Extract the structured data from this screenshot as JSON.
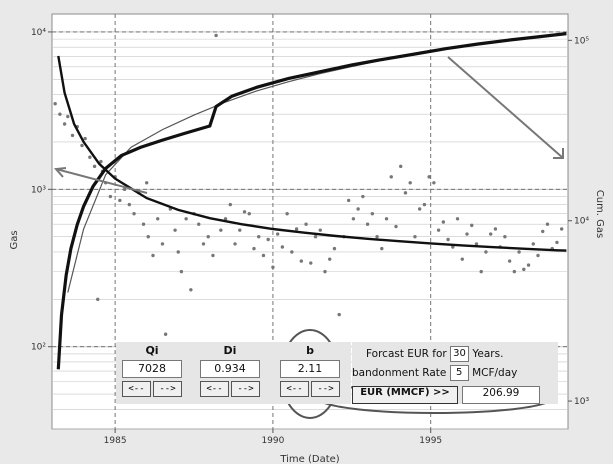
{
  "chart_data": {
    "type": "scatter",
    "xlabel": "Time (Date)",
    "ylabel": "Gas",
    "y2label": "Cum. Gas",
    "xlim": [
      1983.0,
      1999.35
    ],
    "ylim": [
      30,
      13000
    ],
    "y2lim": [
      700,
      140000
    ],
    "y_scale": "log",
    "y2_scale": "log",
    "grid": true,
    "x_ticks": [
      1985,
      1990,
      1995
    ],
    "x_tick_labels": [
      "1985",
      "1990",
      "1995"
    ],
    "y_ticks": [
      100,
      1000,
      10000
    ],
    "y_tick_labels": [
      "10²",
      "10³",
      "10⁴"
    ],
    "y2_ticks": [
      1000,
      10000,
      100000
    ],
    "y2_tick_labels": [
      "10³",
      "10⁴",
      "10⁵"
    ],
    "colors": {
      "points": "#777777",
      "curve": "#111111",
      "thin_curve": "#555555",
      "arrow": "#777777",
      "ellipse": "#555555",
      "plot_bg": "#ffffff",
      "grid": "#c7c7c7"
    },
    "series": [
      {
        "type": "scatter",
        "axis": "left",
        "x": [
          1983.1,
          1983.25,
          1983.4,
          1983.5,
          1983.65,
          1983.8,
          1983.95,
          1984.05,
          1984.2,
          1984.35,
          1984.45,
          1984.55,
          1984.6,
          1984.7,
          1984.85,
          1985.0,
          1985.15,
          1985.3,
          1985.45,
          1985.6,
          1985.75,
          1985.9,
          1986.0,
          1986.05,
          1986.2,
          1986.35,
          1986.5,
          1986.6,
          1986.75,
          1986.9,
          1987.0,
          1987.1,
          1987.25,
          1987.4,
          1987.5,
          1987.65,
          1987.8,
          1987.95,
          1988.1,
          1988.2,
          1988.35,
          1988.5,
          1988.65,
          1988.8,
          1988.95,
          1989.1,
          1989.25,
          1989.4,
          1989.55,
          1989.7,
          1989.85,
          1990.0,
          1990.15,
          1990.3,
          1990.45,
          1990.6,
          1990.75,
          1990.9,
          1991.05,
          1991.2,
          1991.35,
          1991.5,
          1991.65,
          1991.8,
          1991.95,
          1992.1,
          1992.25,
          1992.4,
          1992.55,
          1992.7,
          1992.85,
          1993.0,
          1993.15,
          1993.3,
          1993.45,
          1993.6,
          1993.75,
          1993.9,
          1994.05,
          1994.2,
          1994.35,
          1994.5,
          1994.65,
          1994.8,
          1994.95,
          1995.1,
          1995.25,
          1995.4,
          1995.55,
          1995.7,
          1995.85,
          1996.0,
          1996.15,
          1996.3,
          1996.45,
          1996.6,
          1996.75,
          1996.9,
          1997.05,
          1997.2,
          1997.35,
          1997.5,
          1997.65,
          1997.8,
          1997.95,
          1998.1,
          1998.25,
          1998.4,
          1998.55,
          1998.7,
          1998.85,
          1999.0,
          1999.15
        ],
        "y": [
          3500,
          3000,
          2600,
          2900,
          2200,
          2500,
          1900,
          2100,
          1600,
          1400,
          200,
          1500,
          1300,
          1100,
          900,
          1200,
          850,
          1000,
          800,
          700,
          950,
          600,
          1100,
          500,
          380,
          650,
          450,
          120,
          750,
          550,
          400,
          300,
          650,
          230,
          700,
          600,
          450,
          500,
          380,
          9500,
          550,
          650,
          800,
          450,
          550,
          720,
          700,
          420,
          500,
          380,
          480,
          320,
          520,
          430,
          700,
          400,
          560,
          350,
          600,
          340,
          500,
          550,
          300,
          360,
          420,
          160,
          500,
          850,
          650,
          750,
          900,
          600,
          700,
          500,
          420,
          650,
          1200,
          580,
          1400,
          950,
          1100,
          500,
          750,
          800,
          1200,
          1100,
          550,
          620,
          480,
          430,
          650,
          360,
          520,
          590,
          450,
          300,
          400,
          520,
          560,
          430,
          500,
          350,
          300,
          400,
          310,
          330,
          450,
          380,
          540,
          600,
          420,
          460,
          560
        ],
        "name": ""
      },
      {
        "type": "line",
        "axis": "left",
        "x": [
          1983.2,
          1983.4,
          1983.7,
          1984.0,
          1984.5,
          1985.0,
          1986.0,
          1987.0,
          1988.0,
          1989.0,
          1990.0,
          1991.0,
          1992.0,
          1993.0,
          1994.0,
          1995.0,
          1996.0,
          1997.0,
          1998.0,
          1999.0,
          1999.3
        ],
        "y": [
          7028,
          4100,
          2600,
          2000,
          1450,
          1170,
          880,
          740,
          655,
          600,
          560,
          530,
          505,
          485,
          468,
          453,
          440,
          429,
          419,
          410,
          408
        ],
        "name": ""
      },
      {
        "type": "line",
        "axis": "right",
        "x": [
          1983.2,
          1983.3,
          1983.45,
          1983.6,
          1983.8,
          1984.0,
          1984.3,
          1984.7,
          1985.2,
          1985.8,
          1986.5,
          1987.2,
          1988.0,
          1988.2,
          1988.7,
          1989.5,
          1990.5,
          1991.5,
          1992.5,
          1993.5,
          1994.5,
          1995.5,
          1996.5,
          1997.5,
          1998.5,
          1999.3
        ],
        "y": [
          1500,
          3000,
          5000,
          7000,
          9500,
          12000,
          15500,
          19500,
          23000,
          25500,
          28000,
          30500,
          33500,
          43000,
          49000,
          55000,
          61500,
          67000,
          73000,
          78500,
          84000,
          90000,
          95500,
          100500,
          105000,
          109000
        ],
        "name": ""
      },
      {
        "type": "line",
        "axis": "right",
        "x": [
          1983.5,
          1984.0,
          1984.7,
          1985.5,
          1986.5,
          1987.5,
          1988.5,
          1989.5,
          1990.5,
          1991.5,
          1992.5,
          1993.5,
          1995.0,
          1996.5,
          1998.0,
          1999.3
        ],
        "y": [
          4000,
          9000,
          18000,
          25500,
          32000,
          38500,
          45500,
          52500,
          59000,
          65500,
          71500,
          78000,
          87000,
          95500,
          103000,
          110000
        ],
        "name": ""
      }
    ]
  },
  "controls": {
    "qi": {
      "label": "Qi",
      "value": "7028",
      "dec_label": "<--",
      "inc_label": "-->"
    },
    "di": {
      "label": "Di",
      "value": "0.934",
      "dec_label": "<--",
      "inc_label": "-->"
    },
    "b": {
      "label": "b",
      "value": "2.11",
      "dec_label": "<--",
      "inc_label": "-->"
    },
    "eur": {
      "line1_prefix": "Forcast EUR for",
      "years": "30",
      "years_unit": "Years.",
      "line2_prefix": "bandonment Rate",
      "rate": "5",
      "rate_unit": "MCF/day",
      "button_label": "EUR (MMCF) >>",
      "value": "206.99"
    }
  }
}
